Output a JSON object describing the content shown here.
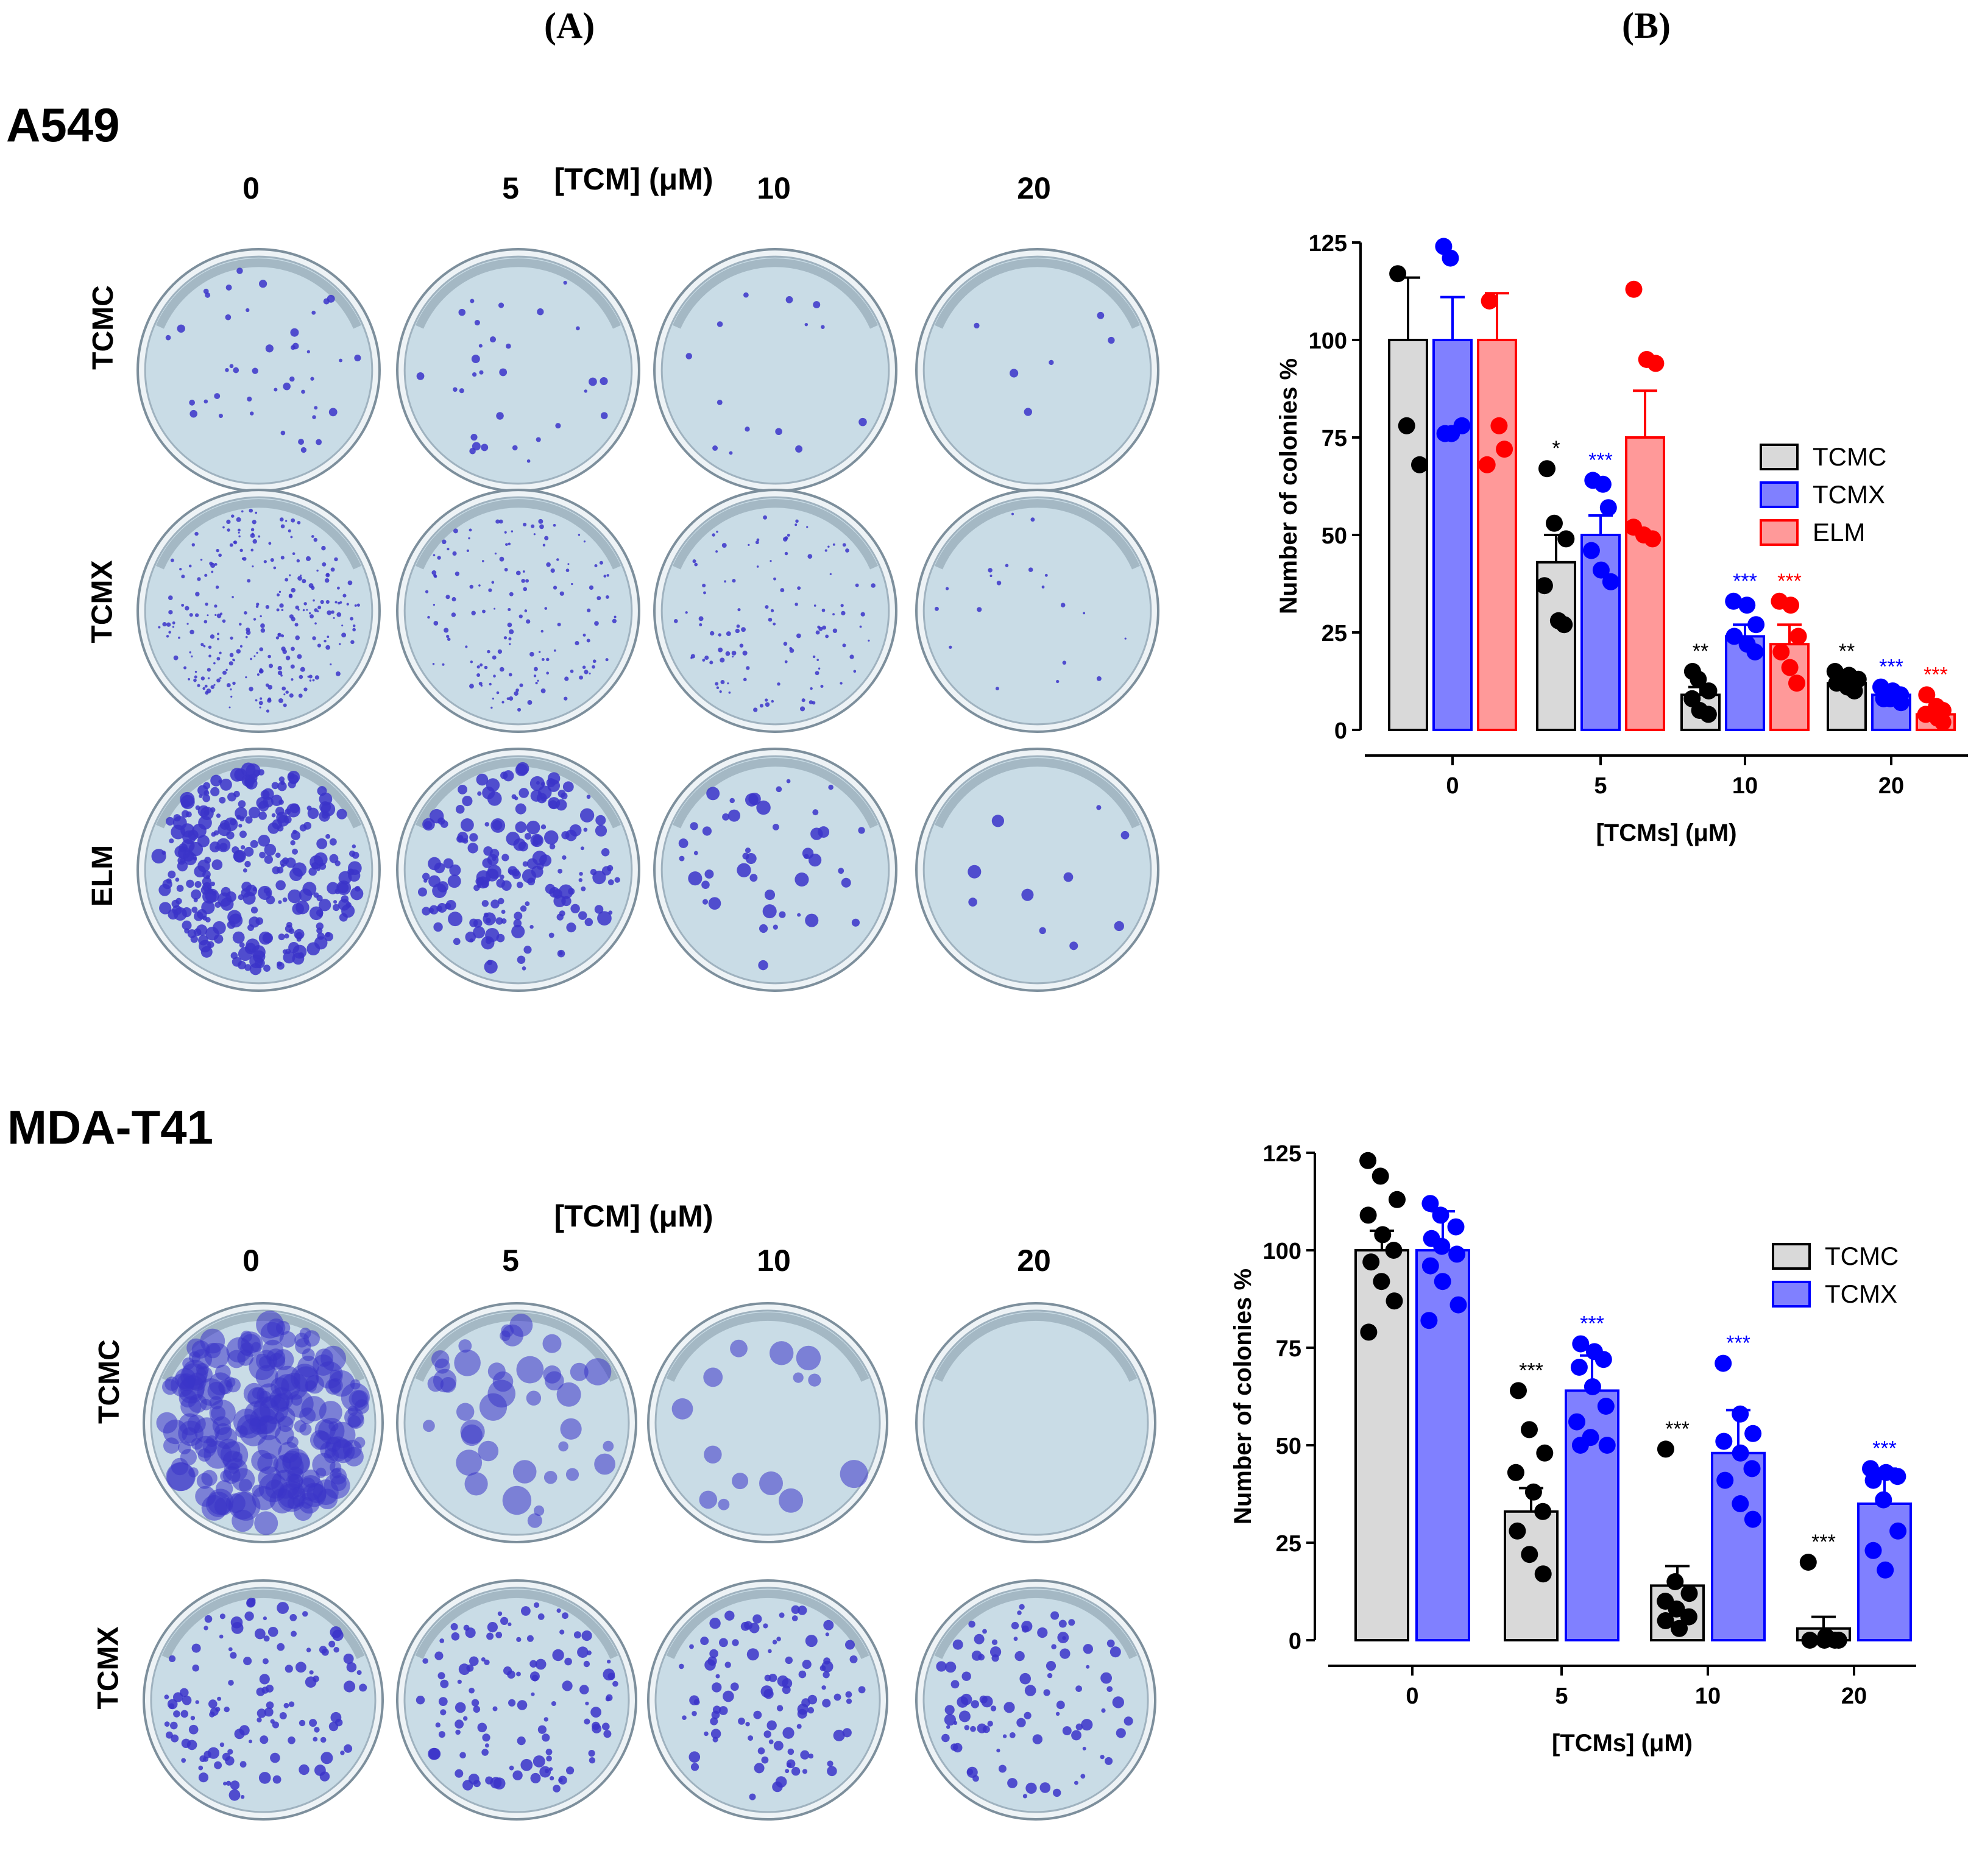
{
  "panel_labels": [
    "(A)",
    "(B)"
  ],
  "sections": [
    {
      "cell_line": "A549",
      "concentration_title": "[TCM] (μM)",
      "concentrations": [
        "0",
        "5",
        "10",
        "20"
      ],
      "rows": [
        {
          "label": "TCMC",
          "colony_counts": [
            42,
            30,
            14,
            6
          ],
          "style": "small"
        },
        {
          "label": "TCMX",
          "colony_counts": [
            260,
            140,
            110,
            20
          ],
          "style": "tiny"
        },
        {
          "label": "ELM",
          "colony_counts": [
            300,
            180,
            45,
            10
          ],
          "style": "large"
        }
      ]
    },
    {
      "cell_line": "MDA-T41",
      "concentration_title": "[TCM] (μM)",
      "concentrations": [
        "0",
        "5",
        "10",
        "20"
      ],
      "rows": [
        {
          "label": "TCMC",
          "colony_counts": [
            220,
            40,
            14,
            0
          ],
          "style": "blob"
        },
        {
          "label": "TCMX",
          "colony_counts": [
            120,
            110,
            100,
            90
          ],
          "style": "medium"
        }
      ]
    }
  ],
  "colors": {
    "TCMC": "#d9d9d9",
    "TCMC_edge": "#000000",
    "TCMC_dot": "#000000",
    "TCMX": "#8080ff",
    "TCMX_edge": "#0000ff",
    "TCMX_dot": "#0000ff",
    "ELM": "#ff9999",
    "ELM_edge": "#ff0000",
    "ELM_dot": "#ff0000",
    "dish_bg": "#c9dce6",
    "colony": "#3b34c9"
  },
  "chart_data": [
    {
      "type": "bar",
      "title": "",
      "xlabel": "[TCMs] (μM)",
      "ylabel": "Number of colonies %",
      "categories": [
        "0",
        "5",
        "10",
        "20"
      ],
      "ylim": [
        0,
        125
      ],
      "yticks": [
        "0",
        "25",
        "50",
        "75",
        "100",
        "125"
      ],
      "legend_position": "right",
      "series": [
        {
          "name": "TCMC",
          "values": [
            100,
            43,
            9,
            12
          ],
          "errors": [
            16,
            7,
            2,
            2
          ],
          "points": [
            [
              117,
              78,
              68
            ],
            [
              67,
              53,
              49,
              37,
              28,
              27
            ],
            [
              15,
              13,
              10,
              8,
              5,
              4
            ],
            [
              15,
              14,
              13,
              12,
              11,
              10
            ]
          ],
          "significance": [
            "",
            "*",
            "**",
            "**"
          ]
        },
        {
          "name": "TCMX",
          "values": [
            100,
            50,
            24,
            9
          ],
          "errors": [
            11,
            5,
            3,
            1
          ],
          "points": [
            [
              124,
              121,
              78,
              76,
              76
            ],
            [
              64,
              63,
              57,
              46,
              41,
              38
            ],
            [
              33,
              32,
              27,
              24,
              22,
              20
            ],
            [
              11,
              10,
              9,
              8,
              8,
              7
            ]
          ],
          "significance": [
            "",
            "***",
            "***",
            "***"
          ]
        },
        {
          "name": "ELM",
          "values": [
            100,
            75,
            22,
            4
          ],
          "errors": [
            12,
            12,
            5,
            1
          ],
          "points": [
            [
              110,
              78,
              72,
              68
            ],
            [
              113,
              95,
              94,
              52,
              50,
              49
            ],
            [
              33,
              32,
              24,
              20,
              16,
              12
            ],
            [
              9,
              6,
              5,
              4,
              3,
              2
            ]
          ],
          "significance": [
            "",
            "",
            "***",
            "***"
          ]
        }
      ]
    },
    {
      "type": "bar",
      "title": "",
      "xlabel": "[TCMs] (μM)",
      "ylabel": "Number of colonies %",
      "categories": [
        "0",
        "5",
        "10",
        "20"
      ],
      "ylim": [
        0,
        125
      ],
      "yticks": [
        "0",
        "25",
        "50",
        "75",
        "100",
        "125"
      ],
      "legend_position": "right",
      "series": [
        {
          "name": "TCMC",
          "values": [
            100,
            33,
            14,
            3
          ],
          "errors": [
            5,
            6,
            5,
            3
          ],
          "points": [
            [
              123,
              119,
              113,
              109,
              104,
              100,
              97,
              92,
              87,
              79
            ],
            [
              64,
              54,
              48,
              43,
              38,
              33,
              28,
              22,
              17
            ],
            [
              49,
              15,
              12,
              10,
              8,
              6,
              5,
              3
            ],
            [
              20,
              1,
              0,
              0,
              0,
              0
            ]
          ],
          "significance": [
            "",
            "***",
            "***",
            "***"
          ]
        },
        {
          "name": "TCMX",
          "values": [
            100,
            64,
            48,
            35
          ],
          "errors": [
            10,
            9,
            11,
            9
          ],
          "points": [
            [
              112,
              109,
              106,
              103,
              101,
              99,
              96,
              92,
              86,
              82
            ],
            [
              76,
              74,
              72,
              70,
              65,
              60,
              56,
              52,
              50,
              50
            ],
            [
              71,
              58,
              53,
              51,
              48,
              44,
              41,
              35,
              31
            ],
            [
              44,
              43,
              42,
              41,
              36,
              28,
              23,
              18
            ]
          ],
          "significance": [
            "",
            "***",
            "***",
            "***"
          ]
        }
      ]
    }
  ]
}
